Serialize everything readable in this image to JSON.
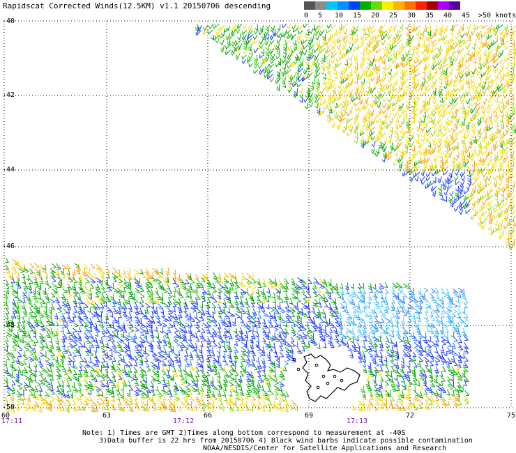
{
  "header": {
    "title": "Rapidscat Corrected Winds(12.5KM) v1.1 20150706 descending"
  },
  "legend": {
    "colors": [
      "#555555",
      "#8a8a8a",
      "#00c8ff",
      "#0090ff",
      "#0040ff",
      "#00b000",
      "#66dd00",
      "#ffee00",
      "#ffb000",
      "#ff7000",
      "#ff2000",
      "#a00000",
      "#aa00ff",
      "#5a00a0"
    ],
    "labels": [
      "0",
      "5",
      "10",
      "15",
      "20",
      "25",
      "30",
      "35",
      "40",
      "45",
      ">50 knots"
    ]
  },
  "map": {
    "lat_labels": [
      "-40",
      "-42",
      "-44",
      "-46",
      "-48",
      "-50"
    ],
    "lon_labels": [
      "60",
      "63",
      "66",
      "69",
      "72",
      "75"
    ],
    "time_labels": [
      "17:11",
      "17:12",
      "17:13"
    ],
    "contour_color": "#000000"
  },
  "footer": {
    "note_line1": "Note: 1) Times are GMT 2)Times along bottom correspond to measurement at -40S",
    "note_line2": "3)Data buffer is 22 hrs from 20150706 4) Black wind barbs indicate possible contamination",
    "credit": "NOAA/NESDIS/Center for Satellite Applications and Research"
  }
}
